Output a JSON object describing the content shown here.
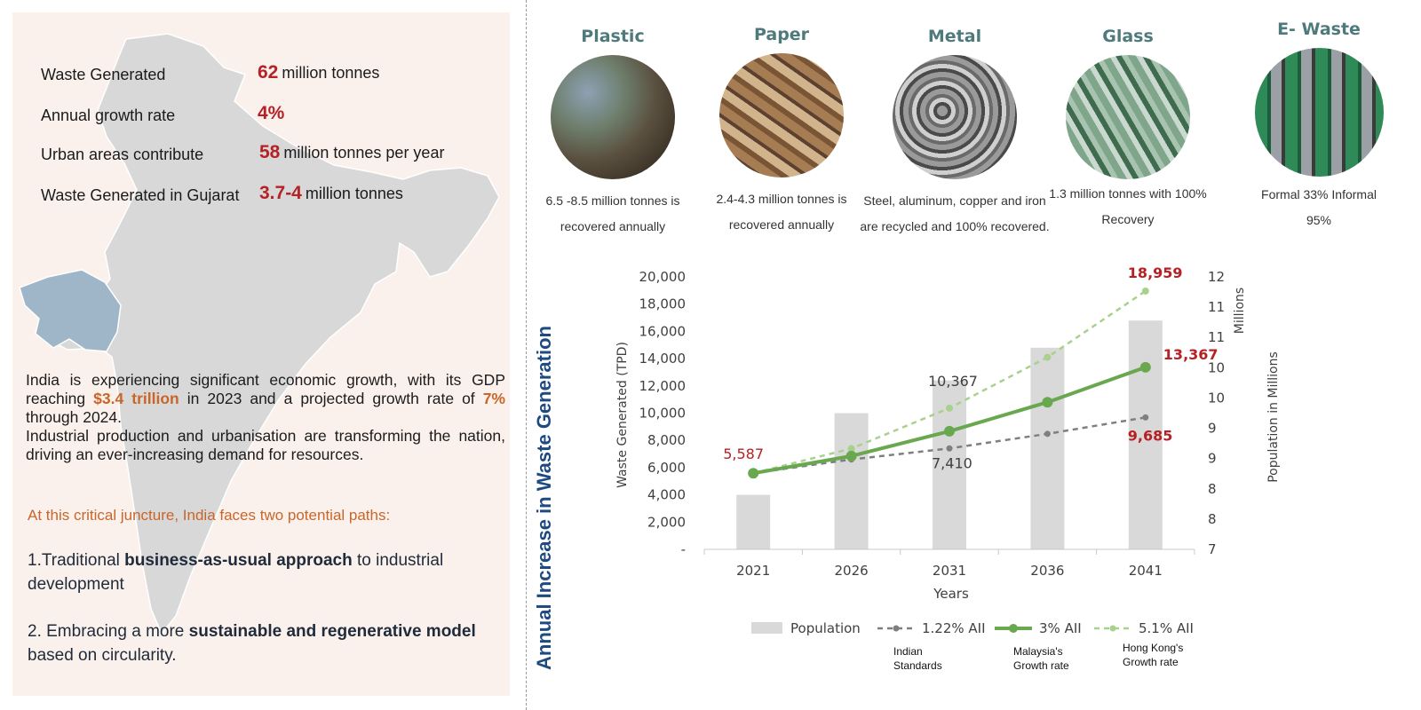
{
  "left": {
    "stats": [
      {
        "label": "Waste Generated",
        "num": "62",
        "unit": "million tonnes"
      },
      {
        "label": "Annual growth rate",
        "num": "4%",
        "unit": ""
      },
      {
        "label": "Urban areas contribute",
        "num": "58",
        "unit": "million tonnes per year"
      },
      {
        "label": "Waste Generated in Gujarat",
        "num": "3.7-4",
        "unit": "million tonnes"
      }
    ],
    "intro": {
      "p1a": "India is experiencing significant economic growth, with its GDP reaching ",
      "gdp": "$3.4 trillion",
      "p1b": " in 2023 and a projected growth rate of ",
      "rate": "7%",
      "p1c": " through 2024.",
      "p2": " Industrial production and urbanisation are transforming the nation, driving an ever-increasing demand for resources."
    },
    "juncture": "At this critical juncture, India faces two potential paths:",
    "path1": {
      "a": "1.Traditional ",
      "b": "business-as-usual approach",
      "c": " to industrial development"
    },
    "path2": {
      "a": "2. Embracing a more ",
      "b": "sustainable and regenerative model",
      "c": " based on circularity."
    }
  },
  "materials": [
    {
      "title": "Plastic",
      "desc": "6.5 -8.5 million tonnes is recovered annually",
      "icon": "plastic-waste-photo"
    },
    {
      "title": "Paper",
      "desc": "2.4-4.3 million tonnes is recovered annually",
      "icon": "paper-waste-photo"
    },
    {
      "title": "Metal",
      "desc": "Steel, aluminum, copper and iron are recycled and 100% recovered.",
      "icon": "metal-waste-photo"
    },
    {
      "title": "Glass",
      "desc": "1.3 million tonnes with 100% Recovery",
      "icon": "glass-waste-photo"
    },
    {
      "title": "E- Waste",
      "desc": "Formal 33% Informal 95%",
      "icon": "e-waste-photo"
    }
  ],
  "chart_title": "Annual Increase in Waste Generation",
  "chart_data": {
    "type": "bar+line",
    "categories": [
      "2021",
      "2026",
      "2031",
      "2036",
      "2041"
    ],
    "xlabel": "Years",
    "ylabel_left": "Waste  Generated (TPD)",
    "ylabel_right": "Population in Millions",
    "right_unit_label": "Millions",
    "ylim_left": [
      0,
      20000
    ],
    "yticks_left": [
      "-",
      "2,000",
      "4,000",
      "6,000",
      "8,000",
      "10,000",
      "12,000",
      "14,000",
      "16,000",
      "18,000",
      "20,000"
    ],
    "ylim_right": [
      7,
      12
    ],
    "yticks_right": [
      "7",
      "8",
      "8",
      "9",
      "9",
      "10",
      "10",
      "11",
      "11",
      "12"
    ],
    "grid": false,
    "legend_position": "bottom",
    "series": [
      {
        "name": "Population",
        "kind": "bar",
        "axis": "right",
        "color": "#d9d9d9",
        "values": [
          8.0,
          9.5,
          10.1,
          10.7,
          11.2
        ]
      },
      {
        "name": "1.22% AII",
        "kind": "dashed-line",
        "axis": "left",
        "color": "#7f7f7f",
        "values": [
          5587,
          6600,
          7410,
          8480,
          9685
        ],
        "note": "Indian Standards"
      },
      {
        "name": "3% AII",
        "kind": "solid-line",
        "axis": "left",
        "color": "#6aa84f",
        "values": [
          5587,
          6850,
          8670,
          10800,
          13367
        ],
        "note": "Malaysia's Growth rate"
      },
      {
        "name": "5.1% AII",
        "kind": "dashed-line",
        "axis": "left",
        "color": "#a9d18e",
        "values": [
          5587,
          7400,
          10367,
          14100,
          18959
        ],
        "note": "Hong Kong's Growth rate"
      }
    ],
    "data_labels": [
      {
        "text": "5,587",
        "color": "#b52124"
      },
      {
        "text": "10,367",
        "color": "#404040"
      },
      {
        "text": "7,410",
        "color": "#404040"
      },
      {
        "text": "18,959",
        "color": "#b52124"
      },
      {
        "text": "13,367",
        "color": "#b52124"
      },
      {
        "text": "9,685",
        "color": "#b52124"
      }
    ]
  }
}
